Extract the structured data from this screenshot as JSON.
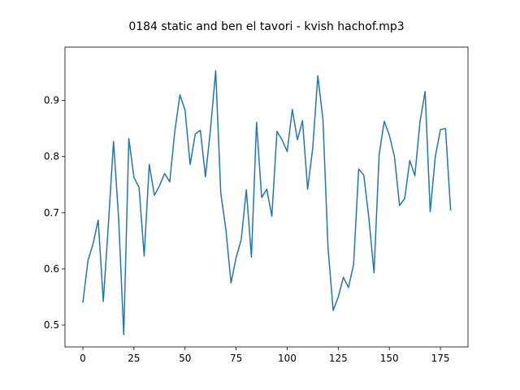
{
  "chart_data": {
    "type": "line",
    "title": "0184 static and ben el tavori - kvish hachof.mp3",
    "x": [
      0,
      2.5,
      5,
      7.5,
      10,
      12.5,
      15,
      17.5,
      20,
      22.5,
      25,
      27.5,
      30,
      32.5,
      35,
      37.5,
      40,
      42.5,
      45,
      47.5,
      50,
      52.5,
      55,
      57.5,
      60,
      62.5,
      65,
      67.5,
      70,
      72.5,
      75,
      77.5,
      80,
      82.5,
      85,
      87.5,
      90,
      92.5,
      95,
      97.5,
      100,
      102.5,
      105,
      107.5,
      110,
      112.5,
      115,
      117.5,
      120,
      122.5,
      125,
      127.5,
      130,
      132.5,
      135,
      137.5,
      140,
      142.5,
      145,
      147.5,
      150,
      152.5,
      155,
      157.5,
      160,
      162.5,
      165,
      167.5,
      170,
      172.5,
      175,
      177.5,
      180
    ],
    "series": [
      {
        "color": "#1f77b4",
        "values": [
          0.54,
          0.615,
          0.645,
          0.687,
          0.542,
          0.68,
          0.827,
          0.69,
          0.483,
          0.832,
          0.763,
          0.745,
          0.623,
          0.786,
          0.731,
          0.748,
          0.77,
          0.755,
          0.845,
          0.91,
          0.883,
          0.786,
          0.84,
          0.847,
          0.764,
          0.85,
          0.953,
          0.735,
          0.67,
          0.575,
          0.62,
          0.652,
          0.741,
          0.621,
          0.861,
          0.727,
          0.742,
          0.694,
          0.845,
          0.83,
          0.809,
          0.884,
          0.83,
          0.864,
          0.742,
          0.815,
          0.944,
          0.866,
          0.637,
          0.526,
          0.55,
          0.585,
          0.567,
          0.608,
          0.778,
          0.767,
          0.69,
          0.593,
          0.803,
          0.863,
          0.838,
          0.8,
          0.713,
          0.725,
          0.793,
          0.766,
          0.862,
          0.916,
          0.702,
          0.8,
          0.848,
          0.85,
          0.704
        ]
      }
    ],
    "xlim": [
      -8.75,
      188.5
    ],
    "xticks": [
      0,
      25,
      50,
      75,
      100,
      125,
      150,
      175
    ],
    "ylim": [
      0.461,
      0.995
    ],
    "yticks": [
      0.5,
      0.6,
      0.7,
      0.8,
      0.9
    ]
  }
}
